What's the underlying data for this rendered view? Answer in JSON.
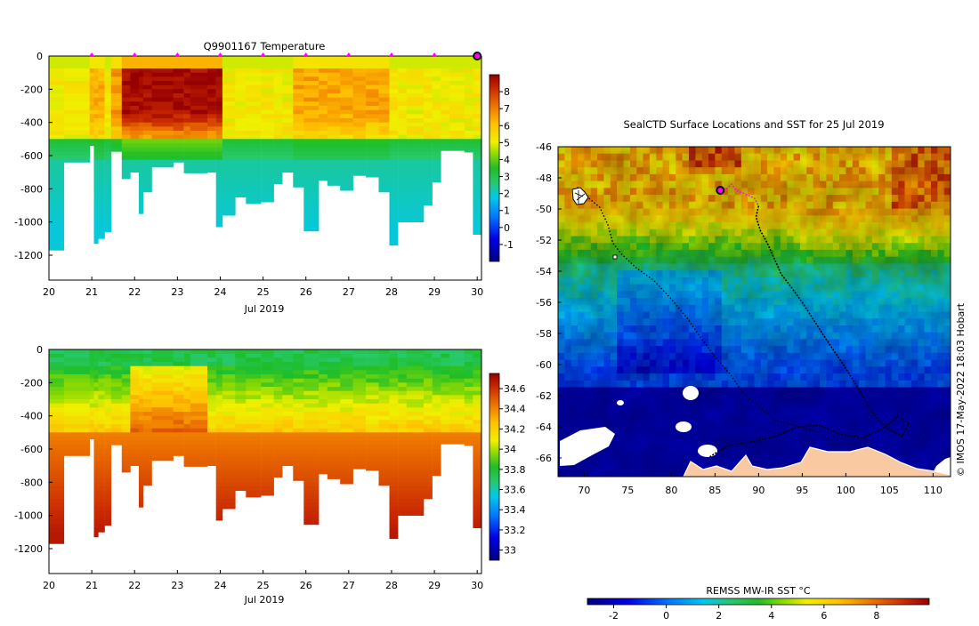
{
  "chart_data": [
    {
      "type": "heatmap",
      "title": "Q9901167  Temperature",
      "xlabel": "Jul 2019",
      "ylabel": "",
      "xlim": [
        20,
        30.1
      ],
      "ylim": [
        -1350,
        0
      ],
      "xticks": [
        "20",
        "21",
        "22",
        "23",
        "24",
        "25",
        "26",
        "27",
        "28",
        "29",
        "30"
      ],
      "yticks": [
        "0",
        "-200",
        "-400",
        "-600",
        "-800",
        "-1000",
        "-1200"
      ],
      "colorbar": {
        "min": -2,
        "max": 9,
        "ticks": [
          "-1",
          "0",
          "1",
          "2",
          "3",
          "4",
          "5",
          "6",
          "7",
          "8"
        ]
      },
      "surface_markers_day": [
        21,
        22,
        23,
        24,
        25,
        26,
        27,
        28,
        29
      ],
      "latest_marker_day": 30,
      "profile_start_days": [
        20.0,
        20.35,
        20.95,
        21.05,
        21.15,
        21.3,
        21.45,
        21.7,
        21.9,
        22.1,
        22.2,
        22.4,
        22.9,
        23.15,
        23.3,
        23.7,
        23.9,
        24.05,
        24.35,
        24.6,
        24.95,
        25.25,
        25.45,
        25.7,
        25.95,
        26.3,
        26.5,
        26.8,
        27.1,
        27.4,
        27.7,
        27.95,
        28.15,
        28.35,
        28.75,
        28.95,
        29.15,
        29.35,
        29.7,
        29.9
      ],
      "profile_max_depths": [
        -1170,
        -640,
        -540,
        -1130,
        -1100,
        -1060,
        -575,
        -740,
        -700,
        -950,
        -820,
        -670,
        -640,
        -705,
        -705,
        -700,
        -1030,
        -960,
        -850,
        -890,
        -880,
        -770,
        -700,
        -790,
        -1055,
        -750,
        -780,
        -810,
        -720,
        -730,
        -820,
        -1140,
        -1000,
        -1000,
        -900,
        -760,
        -570,
        -570,
        -580,
        -1075
      ]
    },
    {
      "type": "heatmap",
      "title": "",
      "xlabel": "Jul 2019",
      "ylabel": "",
      "xlim": [
        20,
        30.1
      ],
      "ylim": [
        -1350,
        0
      ],
      "xticks": [
        "20",
        "21",
        "22",
        "23",
        "24",
        "25",
        "26",
        "27",
        "28",
        "29",
        "30"
      ],
      "yticks": [
        "0",
        "-200",
        "-400",
        "-600",
        "-800",
        "-1000",
        "-1200"
      ],
      "colorbar": {
        "min": 32.9,
        "max": 34.75,
        "ticks": [
          "33",
          "33.2",
          "33.4",
          "33.6",
          "33.8",
          "34",
          "34.2",
          "34.4",
          "34.6"
        ]
      },
      "profile_start_days": [
        20.0,
        20.35,
        20.95,
        21.05,
        21.15,
        21.3,
        21.45,
        21.7,
        21.9,
        22.1,
        22.2,
        22.4,
        22.9,
        23.15,
        23.3,
        23.7,
        23.9,
        24.05,
        24.35,
        24.6,
        24.95,
        25.25,
        25.45,
        25.7,
        25.95,
        26.3,
        26.5,
        26.8,
        27.1,
        27.4,
        27.7,
        27.95,
        28.15,
        28.35,
        28.75,
        28.95,
        29.15,
        29.35,
        29.7,
        29.9
      ],
      "profile_max_depths": [
        -1170,
        -640,
        -540,
        -1130,
        -1100,
        -1060,
        -575,
        -740,
        -700,
        -950,
        -820,
        -670,
        -640,
        -705,
        -705,
        -700,
        -1030,
        -960,
        -850,
        -890,
        -880,
        -770,
        -700,
        -790,
        -1055,
        -750,
        -780,
        -810,
        -720,
        -730,
        -820,
        -1140,
        -1000,
        -1000,
        -900,
        -760,
        -570,
        -570,
        -580,
        -1075
      ]
    },
    {
      "type": "heatmap",
      "title": "SealCTD Surface Locations and SST for 25 Jul 2019",
      "xlabel": "",
      "ylabel": "",
      "xlim": [
        67,
        112
      ],
      "ylim": [
        -67.2,
        -46
      ],
      "xticks": [
        "70",
        "75",
        "80",
        "85",
        "90",
        "95",
        "100",
        "105",
        "110"
      ],
      "yticks": [
        "-46",
        "-48",
        "-50",
        "-52",
        "-54",
        "-56",
        "-58",
        "-60",
        "-62",
        "-64",
        "-66"
      ],
      "colorbar": {
        "label": "REMSS MW-IR SST °C",
        "min": -3,
        "max": 10,
        "ticks": [
          "-2",
          "0",
          "2",
          "4",
          "6",
          "8"
        ]
      },
      "current_position": [
        85.6,
        -48.8
      ],
      "recent_track": [
        [
          85.6,
          -48.8
        ],
        [
          86.3,
          -48.7
        ],
        [
          86.9,
          -48.4
        ],
        [
          87.4,
          -48.8
        ],
        [
          88.3,
          -49.0
        ],
        [
          89.5,
          -49.3
        ],
        [
          90.0,
          -49.8
        ]
      ],
      "track": [
        [
          90.0,
          -49.8
        ],
        [
          89.7,
          -50.5
        ],
        [
          90.2,
          -51.4
        ],
        [
          91.0,
          -52.2
        ],
        [
          91.8,
          -53.2
        ],
        [
          92.6,
          -54.2
        ],
        [
          93.7,
          -55.0
        ],
        [
          95.0,
          -56.0
        ],
        [
          96.5,
          -57.3
        ],
        [
          98.0,
          -58.6
        ],
        [
          99.7,
          -60.0
        ],
        [
          101.3,
          -61.4
        ],
        [
          102.4,
          -62.5
        ],
        [
          103.6,
          -63.5
        ],
        [
          105.0,
          -64.2
        ],
        [
          106.5,
          -64.6
        ],
        [
          107.2,
          -63.8
        ],
        [
          106.0,
          -63.3
        ],
        [
          104.6,
          -64.0
        ],
        [
          102.0,
          -64.7
        ],
        [
          99.5,
          -64.5
        ],
        [
          97.0,
          -63.9
        ],
        [
          94.5,
          -64.0
        ],
        [
          92.0,
          -64.6
        ],
        [
          89.0,
          -65.0
        ],
        [
          86.5,
          -65.2
        ],
        [
          85.0,
          -65.7
        ],
        [
          84.0,
          -66.1
        ]
      ],
      "track2": [
        [
          69.2,
          -48.6
        ],
        [
          69.7,
          -49.0
        ],
        [
          70.5,
          -49.3
        ],
        [
          71.8,
          -49.9
        ],
        [
          72.7,
          -51.0
        ],
        [
          73.3,
          -52.2
        ],
        [
          74.3,
          -52.9
        ],
        [
          76.0,
          -53.8
        ],
        [
          78.0,
          -54.6
        ],
        [
          80.0,
          -55.8
        ],
        [
          81.8,
          -57.0
        ],
        [
          83.4,
          -58.3
        ],
        [
          85.0,
          -59.5
        ],
        [
          86.7,
          -60.6
        ],
        [
          88.3,
          -61.9
        ],
        [
          90.3,
          -62.8
        ],
        [
          92.0,
          -63.6
        ],
        [
          93.5,
          -63.8
        ],
        [
          95.5,
          -64.1
        ],
        [
          97.0,
          -64.4
        ]
      ],
      "annotation": "© IMOS 17-May-2022 18:03 Hobart"
    }
  ]
}
